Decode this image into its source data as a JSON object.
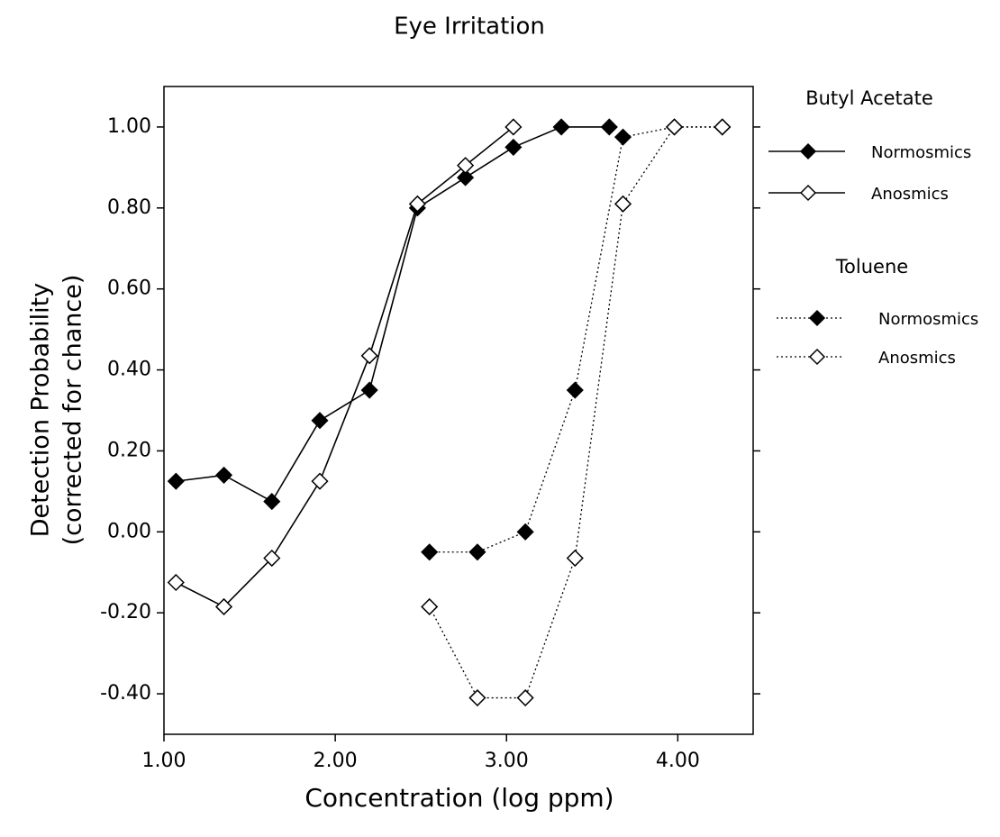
{
  "chart_data": {
    "type": "line",
    "title": "Eye Irritation",
    "x_label": "Concentration (log ppm)",
    "y_label": [
      "Detection Probability",
      "(corrected for chance)"
    ],
    "xlim": [
      1.0,
      4.44
    ],
    "ylim": [
      -0.5,
      1.1
    ],
    "xticks": [
      {
        "value": 1,
        "label": "1.00"
      },
      {
        "value": 2,
        "label": "2.00"
      },
      {
        "value": 3,
        "label": "3.00"
      },
      {
        "value": 4,
        "label": "4.00"
      }
    ],
    "yticks": [
      {
        "value": -0.4,
        "label": "-0.40"
      },
      {
        "value": -0.2,
        "label": "-0.20"
      },
      {
        "value": 0,
        "label": "0.00"
      },
      {
        "value": 0.2,
        "label": "0.20"
      },
      {
        "value": 0.4,
        "label": "0.40"
      },
      {
        "value": 0.6,
        "label": "0.60"
      },
      {
        "value": 0.8,
        "label": "0.80"
      },
      {
        "value": 1,
        "label": "1.00"
      }
    ],
    "groups": [
      "Butyl Acetate",
      "Toluene"
    ],
    "series": [
      {
        "name": "Normosmics",
        "group": 0,
        "dashed": false,
        "filled": true,
        "color": "#000000",
        "x": [
          1.07,
          1.35,
          1.63,
          1.91,
          2.2,
          2.48,
          2.76,
          3.04,
          3.32,
          3.6
        ],
        "values": [
          0.125,
          0.14,
          0.075,
          0.275,
          0.35,
          0.8,
          0.875,
          0.95,
          1.0,
          1.0
        ]
      },
      {
        "name": "Anosmics",
        "group": 0,
        "dashed": false,
        "filled": false,
        "color": "#000000",
        "x": [
          1.07,
          1.35,
          1.63,
          1.91,
          2.2,
          2.48,
          2.76,
          3.04
        ],
        "values": [
          -0.125,
          -0.185,
          -0.065,
          0.125,
          0.435,
          0.81,
          0.905,
          1.0
        ]
      },
      {
        "name": "Normosmics",
        "group": 1,
        "dashed": true,
        "filled": true,
        "color": "#000000",
        "x": [
          2.55,
          2.83,
          3.11,
          3.4,
          3.68,
          3.98,
          4.26
        ],
        "values": [
          -0.05,
          -0.05,
          0.0,
          0.35,
          0.975,
          1.0,
          1.0
        ]
      },
      {
        "name": "Anosmics",
        "group": 1,
        "dashed": true,
        "filled": false,
        "color": "#000000",
        "x": [
          2.55,
          2.83,
          3.11,
          3.4,
          3.68,
          3.98,
          4.26
        ],
        "values": [
          -0.185,
          -0.41,
          -0.41,
          -0.065,
          0.81,
          1.0,
          1.0
        ]
      }
    ]
  }
}
